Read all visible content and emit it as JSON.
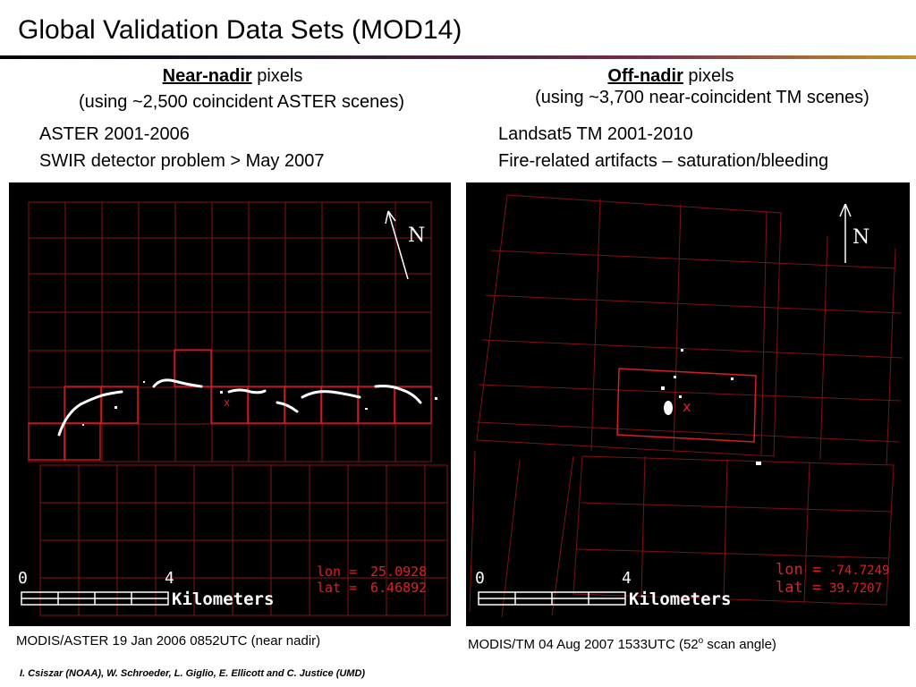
{
  "title": "Global Validation Data Sets (MOD14)",
  "left": {
    "heading_em": "Near-nadir",
    "heading_rest": " pixels",
    "subheading": "(using ~2,500 coincident ASTER scenes)",
    "bullets": [
      "ASTER 2001-2006",
      "SWIR detector problem > May 2007"
    ],
    "map": {
      "north_label": "N",
      "scale_zero": "0",
      "scale_four": "4",
      "scale_unit": "Kilometers",
      "lon_label": "lon =",
      "lon_value": "25.0928",
      "lat_label": "lat =",
      "lat_value": "6.46892"
    },
    "caption": "MODIS/ASTER 19 Jan 2006 0852UTC (near nadir)"
  },
  "right": {
    "heading_em": "Off-nadir",
    "heading_rest": " pixels",
    "subheading": "(using ~3,700 near-coincident TM scenes)",
    "bullets": [
      "Landsat5 TM 2001-2010",
      "Fire-related artifacts – saturation/bleeding"
    ],
    "map": {
      "north_label": "N",
      "scale_zero": "0",
      "scale_four": "4",
      "scale_unit": "Kilometers",
      "lon_label": "lon =",
      "lon_value": "-74.7249",
      "lat_label": "lat =",
      "lat_value": "39.7207"
    },
    "caption_main": "MODIS/TM 04 Aug 2007 1533UTC (52",
    "caption_sup": "o",
    "caption_end": " scan angle)"
  },
  "credits": "I. Csiszar (NOAA), W. Schroeder, L. Giglio, E. Ellicott and C. Justice (UMD)",
  "colors": {
    "grid": "#b81818",
    "pixel": "#d42020",
    "fire": "#ffffff",
    "map_bg": "#000000",
    "text": "#ffffff"
  }
}
